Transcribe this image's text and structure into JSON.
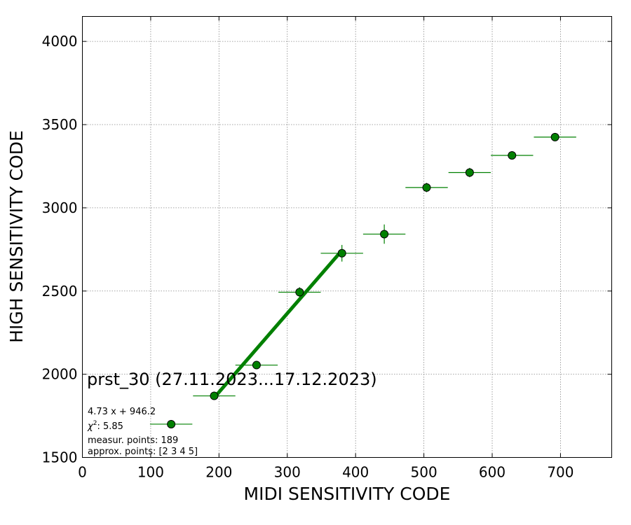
{
  "chart_data": {
    "type": "scatter",
    "title": "prst_30 (27.11.2023...17.12.2023)",
    "xlabel": "MIDI SENSITIVITY CODE",
    "ylabel": "HIGH SENSITIVITY CODE",
    "xlim": [
      0,
      775
    ],
    "ylim": [
      1500,
      4150
    ],
    "xticks": [
      0,
      100,
      200,
      300,
      400,
      500,
      600,
      700
    ],
    "yticks": [
      1500,
      2000,
      2500,
      3000,
      3500,
      4000
    ],
    "grid": true,
    "colors": {
      "points": "#008000",
      "fit_line": "#008000",
      "marker_edge": "#000000"
    },
    "series": [
      {
        "type": "scatter",
        "x": [
          130,
          193,
          255,
          318,
          380,
          442,
          504,
          567,
          629,
          692
        ],
        "y": [
          1700,
          1870,
          2055,
          2493,
          2727,
          2842,
          3122,
          3212,
          3315,
          3425
        ],
        "xerr": [
          31,
          31,
          31,
          31,
          31,
          31,
          31,
          31,
          31,
          31
        ],
        "yerr": [
          0,
          0,
          18,
          30,
          50,
          58,
          28,
          28,
          10,
          10
        ]
      },
      {
        "type": "line",
        "x": [
          193,
          380
        ],
        "y": [
          1859,
          2744
        ]
      }
    ],
    "annotations": {
      "fit": "4.73 x + 946.2",
      "chi2_value": "5.85",
      "measur": "measur. points: 189",
      "approx": "approx. points: [2 3 4 5]"
    }
  }
}
